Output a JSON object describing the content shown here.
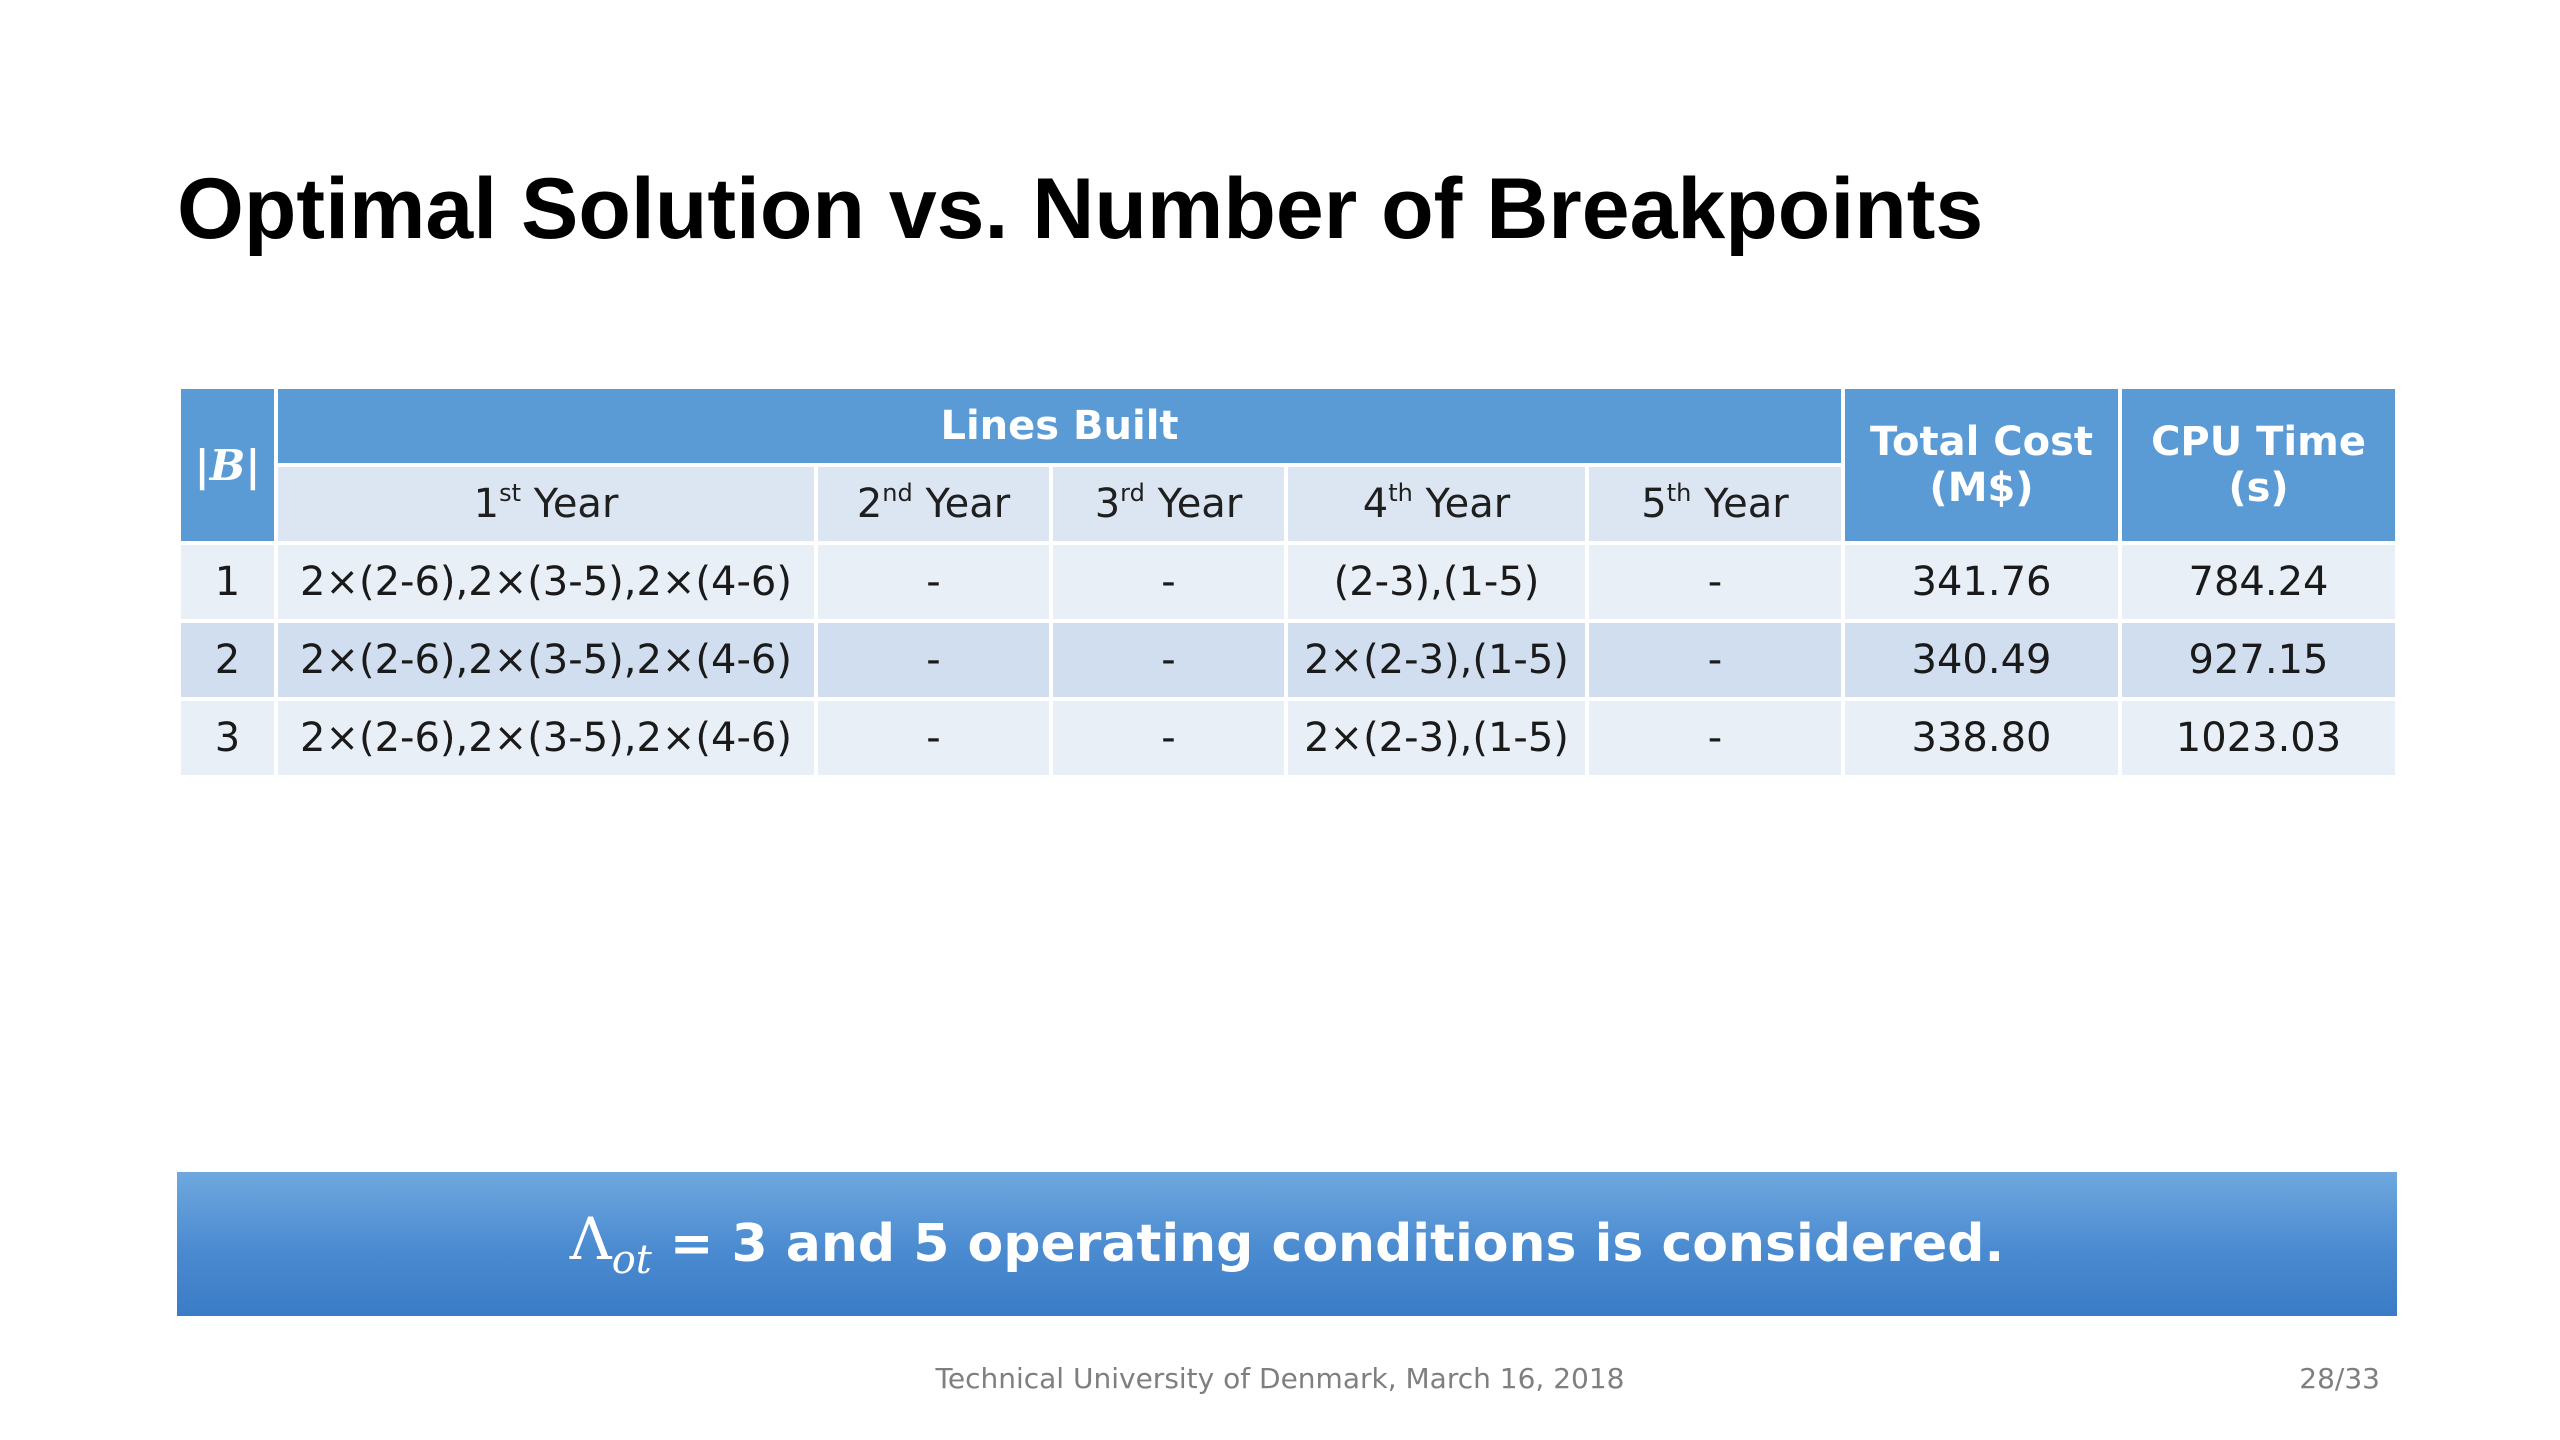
{
  "title": "Optimal Solution vs. Number of Breakpoints",
  "table": {
    "col_b": "|B|",
    "group_header": "Lines Built",
    "years": [
      {
        "num": "1",
        "sup": "st",
        "label": "Year"
      },
      {
        "num": "2",
        "sup": "nd",
        "label": "Year"
      },
      {
        "num": "3",
        "sup": "rd",
        "label": "Year"
      },
      {
        "num": "4",
        "sup": "th",
        "label": "Year"
      },
      {
        "num": "5",
        "sup": "th",
        "label": "Year"
      }
    ],
    "total_cost": {
      "line1": "Total Cost",
      "line2": "(M$)"
    },
    "cpu_time": {
      "line1": "CPU Time",
      "line2": "(s)"
    },
    "rows": [
      {
        "b": "1",
        "y1": "2×(2-6),2×(3-5),2×(4-6)",
        "y2": "-",
        "y3": "-",
        "y4": "(2-3),(1-5)",
        "y5": "-",
        "cost": "341.76",
        "cpu": "784.24"
      },
      {
        "b": "2",
        "y1": "2×(2-6),2×(3-5),2×(4-6)",
        "y2": "-",
        "y3": "-",
        "y4": "2×(2-3),(1-5)",
        "y5": "-",
        "cost": "340.49",
        "cpu": "927.15"
      },
      {
        "b": "3",
        "y1": "2×(2-6),2×(3-5),2×(4-6)",
        "y2": "-",
        "y3": "-",
        "y4": "2×(2-3),(1-5)",
        "y5": "-",
        "cost": "338.80",
        "cpu": "1023.03"
      }
    ]
  },
  "banner": {
    "symbol": "Λ",
    "subscript": "ot",
    "text": "= 3 and 5 operating conditions is considered."
  },
  "footer": {
    "text": "Technical University of Denmark, March 16, 2018",
    "page": "28/33"
  },
  "colors": {
    "header_blue": "#5b9bd5",
    "subheader": "#dce6f2",
    "row_light": "#e9eff7",
    "row_dark": "#d0deef"
  }
}
